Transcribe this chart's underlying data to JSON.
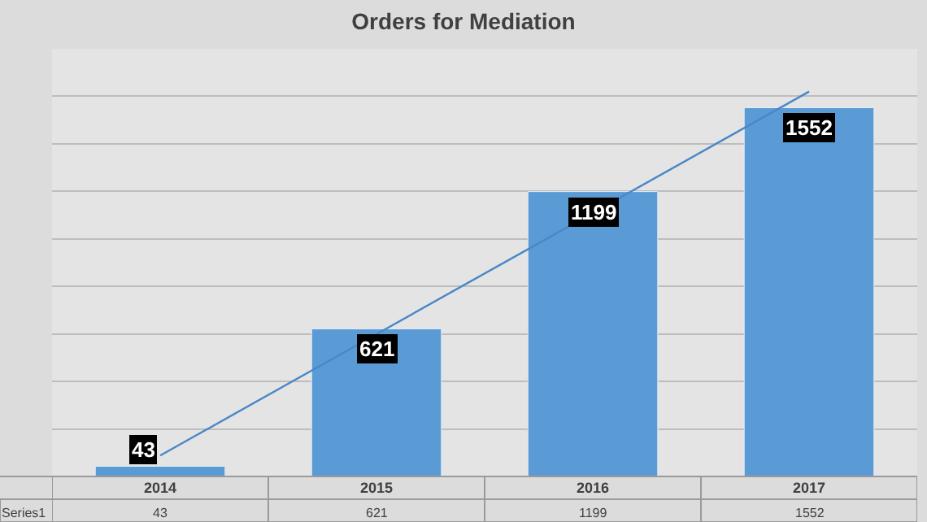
{
  "chart_data": {
    "type": "bar",
    "title": "Orders for Mediation",
    "categories": [
      "2014",
      "2015",
      "2016",
      "2017"
    ],
    "series": [
      {
        "name": "Series1",
        "color": "#5b9bd5",
        "values": [
          43,
          621,
          1199,
          1552
        ],
        "value_labels": [
          "43",
          "621",
          "1199",
          "1552"
        ]
      },
      {
        "type": "line",
        "color": "#4a87c8",
        "values": [
          88,
          599,
          1109,
          1620
        ]
      }
    ],
    "ylim": [
      0,
      1800
    ],
    "yticks": [
      {
        "value": 0,
        "label": null
      },
      {
        "value": 200,
        "label": null
      },
      {
        "value": 400,
        "label": null
      },
      {
        "value": 600,
        "label": null
      },
      {
        "value": 800,
        "label": null
      },
      {
        "value": 1000,
        "label": null
      },
      {
        "value": 1200,
        "label": null
      },
      {
        "value": 1400,
        "label": null
      },
      {
        "value": 1600,
        "label": null
      },
      {
        "value": 1800,
        "label": null
      }
    ],
    "grid": "y",
    "tick_labels": "x",
    "legend": false
  }
}
